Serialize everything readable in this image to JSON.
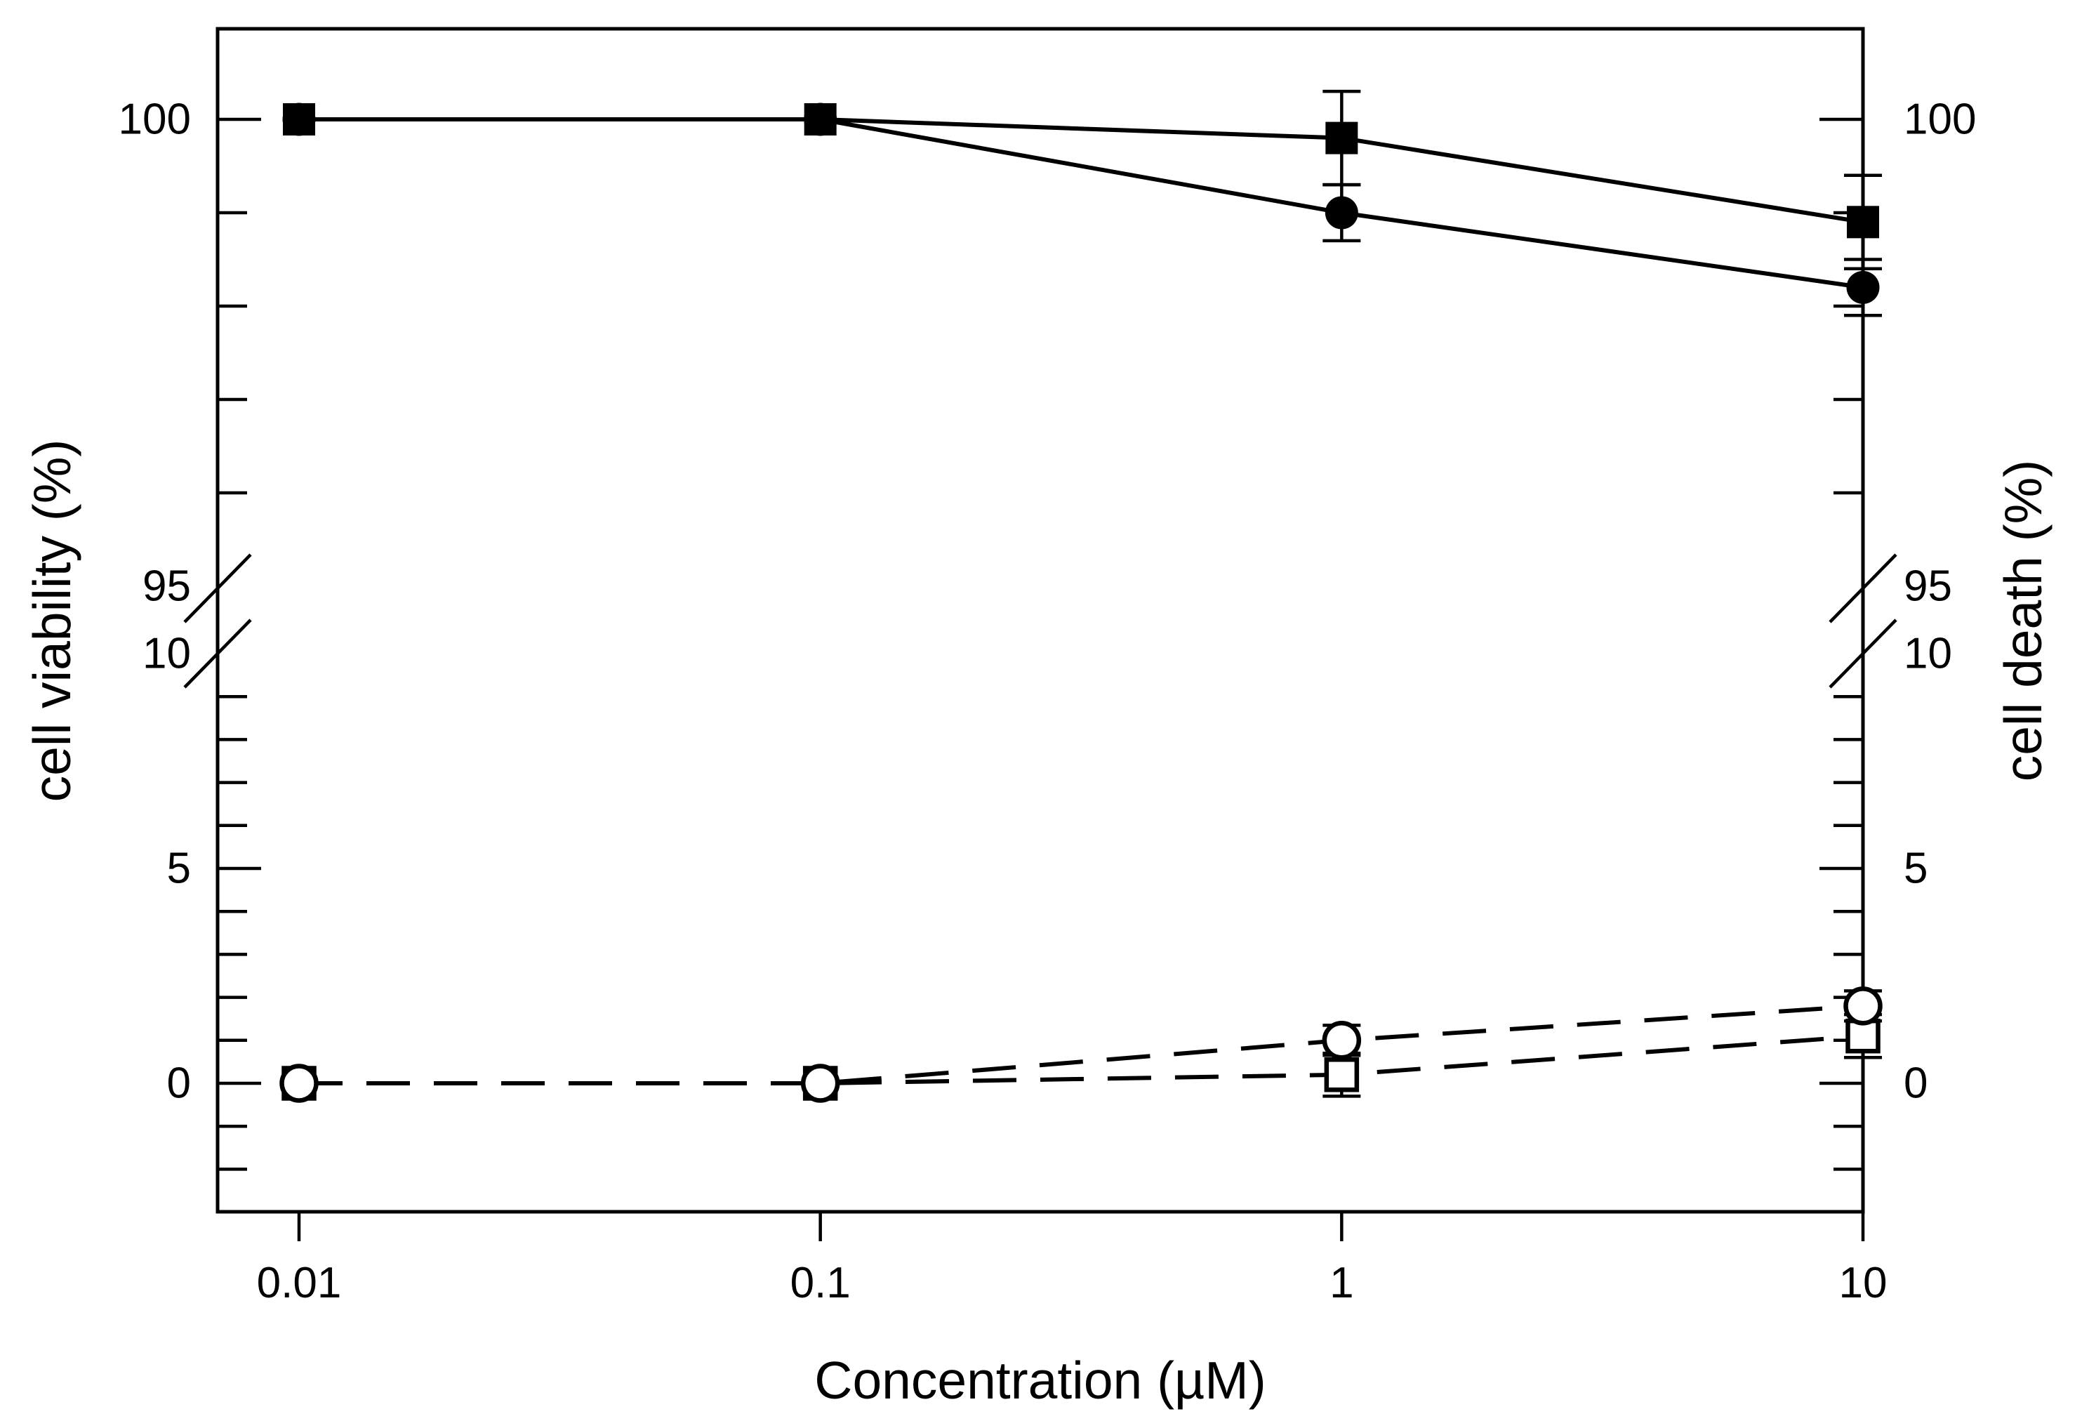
{
  "chart_data": {
    "type": "line",
    "title": "",
    "xlabel": "Concentration (µM)",
    "ylabel_left": "cell viability (%)",
    "ylabel_right": "cell death (%)",
    "x_scale": "log",
    "x": [
      0.01,
      0.1,
      1,
      10
    ],
    "x_tick_labels": [
      "0.01",
      "0.1",
      "1",
      "10"
    ],
    "y_axis_broken": true,
    "y_upper_segment": {
      "axis_label": "cell viability (%)",
      "range": [
        95,
        101
      ],
      "labels": [
        100,
        95
      ],
      "major_ticks": [
        100
      ],
      "minor_ticks": [
        99,
        98,
        97,
        96
      ]
    },
    "y_lower_segment": {
      "axis_label": "cell death (%)",
      "range": [
        -3,
        10
      ],
      "labels": [
        10,
        5,
        0
      ],
      "major_ticks": [
        5,
        0
      ],
      "minor_ticks": [
        9,
        8,
        7,
        6,
        4,
        3,
        2,
        1,
        -1,
        -2
      ]
    },
    "legend": "none",
    "grid": false,
    "series": [
      {
        "name": "cell viability (filled square)",
        "axis": "left",
        "marker": "filled-square",
        "line": "solid",
        "values": [
          100,
          100,
          99.8,
          98.9
        ],
        "errors": [
          0,
          0,
          0.5,
          0.5
        ]
      },
      {
        "name": "cell viability (filled circle)",
        "axis": "left",
        "marker": "filled-circle",
        "line": "solid",
        "values": [
          100,
          100,
          99.0,
          98.2
        ],
        "errors": [
          0,
          0,
          0.3,
          0.3
        ]
      },
      {
        "name": "cell death (open square)",
        "axis": "right",
        "marker": "open-square",
        "line": "dashed",
        "values": [
          0,
          0,
          0.2,
          1.1
        ],
        "errors": [
          0,
          0,
          0.5,
          0.5
        ]
      },
      {
        "name": "cell death (open circle)",
        "axis": "right",
        "marker": "open-circle",
        "line": "dashed",
        "values": [
          0,
          0,
          1.0,
          1.8
        ],
        "errors": [
          0,
          0,
          0.35,
          0.35
        ]
      }
    ],
    "colors": {
      "foreground": "#000000",
      "background": "#ffffff"
    }
  }
}
